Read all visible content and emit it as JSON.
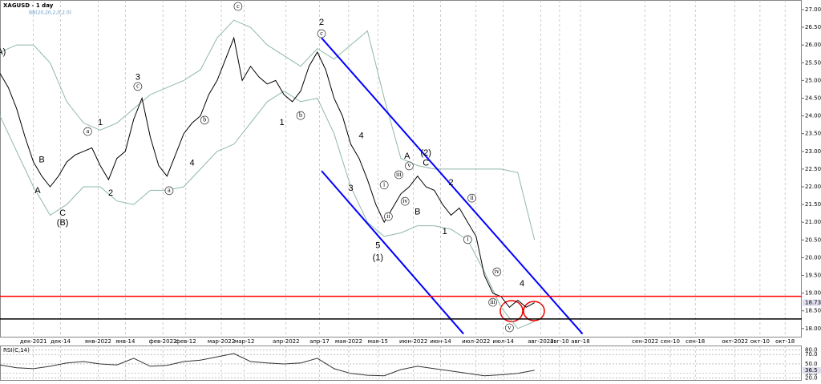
{
  "chart_data": {
    "type": "line",
    "title": "XAGUSD - 1 day",
    "indicator_label": "BB(20,20,2,0,2.0)",
    "x": [
      -16,
      -12,
      -8,
      -4,
      0,
      4,
      8,
      12,
      16,
      20,
      24,
      28,
      32,
      36,
      40,
      44,
      48,
      52,
      56,
      60,
      64,
      68,
      72,
      76,
      80,
      84,
      88,
      92,
      96,
      100,
      104,
      108,
      112,
      116,
      120,
      124,
      128,
      132,
      136,
      140,
      144,
      148,
      152,
      156,
      160,
      164,
      168,
      172,
      176,
      180,
      184,
      188,
      192,
      196,
      200,
      204,
      208,
      212,
      216,
      220,
      224,
      228,
      232,
      236,
      240
    ],
    "close": [
      25.2,
      24.8,
      24.2,
      23.4,
      22.7,
      22.3,
      22.0,
      22.3,
      22.7,
      22.9,
      23.0,
      23.1,
      22.6,
      22.2,
      22.8,
      23.0,
      23.9,
      24.5,
      23.4,
      22.6,
      22.3,
      22.9,
      23.5,
      23.8,
      24.0,
      24.6,
      25.0,
      25.6,
      26.2,
      25.0,
      25.4,
      25.1,
      24.9,
      25.0,
      24.6,
      24.4,
      24.7,
      25.4,
      25.8,
      25.3,
      24.5,
      24.0,
      23.2,
      22.8,
      22.2,
      21.5,
      21.0,
      21.4,
      21.8,
      22.0,
      22.3,
      22.0,
      21.9,
      21.5,
      21.2,
      21.4,
      21.0,
      20.6,
      19.5,
      19.0,
      18.9,
      18.6,
      18.8,
      18.6,
      18.73
    ],
    "close_color": "#000000",
    "band_x": [
      -16,
      -8,
      0,
      8,
      16,
      24,
      32,
      40,
      48,
      56,
      64,
      72,
      80,
      88,
      96,
      104,
      112,
      120,
      128,
      136,
      144,
      152,
      160,
      168,
      176,
      184,
      192,
      200,
      208,
      216,
      224,
      232,
      240
    ],
    "upper_band": [
      25.8,
      26.0,
      26.0,
      25.5,
      24.4,
      23.8,
      23.6,
      23.8,
      24.2,
      24.6,
      24.8,
      25.0,
      25.3,
      26.2,
      26.7,
      26.5,
      26.0,
      25.7,
      25.4,
      25.9,
      25.6,
      26.0,
      26.4,
      24.5,
      22.8,
      22.6,
      22.5,
      22.5,
      22.5,
      22.5,
      22.5,
      22.4,
      20.5
    ],
    "lower_band": [
      24.0,
      23.0,
      22.0,
      21.2,
      21.5,
      22.0,
      22.0,
      21.6,
      21.5,
      21.9,
      21.9,
      22.0,
      22.5,
      23.0,
      23.2,
      23.8,
      24.4,
      24.7,
      24.4,
      24.5,
      23.5,
      22.0,
      21.0,
      20.6,
      20.7,
      20.9,
      20.9,
      20.8,
      20.5,
      19.6,
      18.6,
      18.0,
      18.2
    ],
    "band_color": "#8fb8a8",
    "channel": [
      {
        "x": [
          138,
          263
        ],
        "y": [
          26.2,
          17.85
        ]
      },
      {
        "x": [
          138,
          206
        ],
        "y": [
          22.45,
          17.85
        ]
      }
    ],
    "channel_color": "#0000ff",
    "levels": [
      {
        "value": 18.91,
        "color": "#ff0000"
      },
      {
        "value": 18.27,
        "color": "#000000"
      }
    ],
    "last_price": 18.73,
    "xlim": [
      -16,
      368
    ],
    "ylim": [
      17.77,
      27.27
    ],
    "grid": true,
    "xticks": [
      {
        "value": 0,
        "label": "дек-2021"
      },
      {
        "value": 13,
        "label": "дек-14"
      },
      {
        "value": 31,
        "label": "янв-2022"
      },
      {
        "value": 44,
        "label": "янв-14"
      },
      {
        "value": 62,
        "label": "фев-2022"
      },
      {
        "value": 73,
        "label": "фев-12"
      },
      {
        "value": 90,
        "label": "мар-2022"
      },
      {
        "value": 101,
        "label": "мар-12"
      },
      {
        "value": 121,
        "label": "апр-2022"
      },
      {
        "value": 137,
        "label": "апр-17"
      },
      {
        "value": 151,
        "label": "мая-2022"
      },
      {
        "value": 165,
        "label": "мая-15"
      },
      {
        "value": 182,
        "label": "июн-2022"
      },
      {
        "value": 195,
        "label": "июн-14"
      },
      {
        "value": 212,
        "label": "июл-2022"
      },
      {
        "value": 225,
        "label": "июл-14"
      },
      {
        "value": 243,
        "label": "авг-2022"
      },
      {
        "value": 252,
        "label": "авг-10"
      },
      {
        "value": 262,
        "label": "авг-18"
      },
      {
        "value": 293,
        "label": "сен-2022"
      },
      {
        "value": 305,
        "label": "сен-10"
      },
      {
        "value": 317,
        "label": "сен-18"
      },
      {
        "value": 336,
        "label": "окт-2022"
      },
      {
        "value": 348,
        "label": "окт-10"
      },
      {
        "value": 360,
        "label": "окт-18"
      }
    ],
    "yticks": [
      {
        "value": 18,
        "label": "18.00"
      },
      {
        "value": 18.5,
        "label": "18.50"
      },
      {
        "value": 19,
        "label": "19.00"
      },
      {
        "value": 19.5,
        "label": "19.50"
      },
      {
        "value": 20,
        "label": "20.00"
      },
      {
        "value": 20.5,
        "label": "20.50"
      },
      {
        "value": 21,
        "label": "21.00"
      },
      {
        "value": 21.5,
        "label": "21.50"
      },
      {
        "value": 22,
        "label": "22.00"
      },
      {
        "value": 22.5,
        "label": "22.50"
      },
      {
        "value": 23,
        "label": "23.00"
      },
      {
        "value": 23.5,
        "label": "23.50"
      },
      {
        "value": 24,
        "label": "24.00"
      },
      {
        "value": 24.5,
        "label": "24.50"
      },
      {
        "value": 25,
        "label": "25.00"
      },
      {
        "value": 25.5,
        "label": "25.50"
      },
      {
        "value": 26,
        "label": "26.00"
      },
      {
        "value": 26.5,
        "label": "26.50"
      },
      {
        "value": 27,
        "label": "27.00"
      }
    ],
    "annotations": [
      {
        "text": "(A)",
        "x": -16,
        "y": 25.8,
        "circled": false
      },
      {
        "text": "B",
        "x": 4,
        "y": 22.75,
        "circled": false
      },
      {
        "text": "A",
        "x": 2,
        "y": 21.89,
        "circled": false
      },
      {
        "text": "C",
        "x": 14,
        "y": 21.25,
        "circled": false
      },
      {
        "text": "(B)",
        "x": 14,
        "y": 20.98,
        "circled": false
      },
      {
        "text": "1",
        "x": 32,
        "y": 23.81,
        "circled": false
      },
      {
        "text": "2",
        "x": 37,
        "y": 21.82,
        "circled": false
      },
      {
        "text": "3",
        "x": 50,
        "y": 25.08,
        "circled": false
      },
      {
        "text": "4",
        "x": 76,
        "y": 22.66,
        "circled": false
      },
      {
        "text": "1",
        "x": 119,
        "y": 23.81,
        "circled": false
      },
      {
        "text": "2",
        "x": 138,
        "y": 26.64,
        "circled": false
      },
      {
        "text": "3",
        "x": 152,
        "y": 21.95,
        "circled": false
      },
      {
        "text": "4",
        "x": 157,
        "y": 23.43,
        "circled": false
      },
      {
        "text": "5",
        "x": 165,
        "y": 20.33,
        "circled": false
      },
      {
        "text": "(1)",
        "x": 165,
        "y": 20.0,
        "circled": false
      },
      {
        "text": "A",
        "x": 179,
        "y": 22.86,
        "circled": false
      },
      {
        "text": "(2)",
        "x": 188,
        "y": 22.95,
        "circled": false
      },
      {
        "text": "C",
        "x": 188,
        "y": 22.66,
        "circled": false
      },
      {
        "text": "B",
        "x": 184,
        "y": 21.28,
        "circled": false
      },
      {
        "text": "2",
        "x": 200,
        "y": 22.11,
        "circled": false
      },
      {
        "text": "1",
        "x": 197,
        "y": 20.73,
        "circled": false
      },
      {
        "text": "4",
        "x": 234,
        "y": 19.26,
        "circled": false
      },
      {
        "text": "c",
        "x": 98,
        "y": 27.09,
        "circled": true
      },
      {
        "text": "c",
        "x": 138,
        "y": 26.32,
        "circled": true
      },
      {
        "text": "c",
        "x": 50,
        "y": 24.83,
        "circled": true
      },
      {
        "text": "b",
        "x": 128,
        "y": 24.01,
        "circled": true
      },
      {
        "text": "b",
        "x": 82,
        "y": 23.88,
        "circled": true
      },
      {
        "text": "a",
        "x": 65,
        "y": 21.89,
        "circled": true
      },
      {
        "text": "a",
        "x": 26,
        "y": 23.56,
        "circled": true
      },
      {
        "text": "i",
        "x": 168,
        "y": 22.05,
        "circled": true
      },
      {
        "text": "i",
        "x": 208,
        "y": 20.51,
        "circled": true
      },
      {
        "text": "ii",
        "x": 170,
        "y": 21.16,
        "circled": true
      },
      {
        "text": "iii",
        "x": 175,
        "y": 22.34,
        "circled": true
      },
      {
        "text": "iii",
        "x": 220,
        "y": 18.74,
        "circled": true
      },
      {
        "text": "iv",
        "x": 178,
        "y": 21.59,
        "circled": true
      },
      {
        "text": "iv",
        "x": 222,
        "y": 19.6,
        "circled": true
      },
      {
        "text": "v",
        "x": 180,
        "y": 22.59,
        "circled": true
      },
      {
        "text": "v",
        "x": 228,
        "y": 18.02,
        "circled": true
      },
      {
        "text": "ii",
        "x": 210,
        "y": 21.68,
        "circled": true
      }
    ],
    "rsi": {
      "title": "RSI(C,14)",
      "color": "#333333",
      "values": [
        48,
        42,
        40,
        45,
        52,
        55,
        50,
        48,
        62,
        45,
        47,
        55,
        58,
        65,
        72,
        55,
        52,
        50,
        52,
        62,
        40,
        30,
        26,
        25,
        38,
        45,
        40,
        35,
        30,
        25,
        27,
        30,
        36.5
      ],
      "last": 36.5,
      "ylim": [
        16,
        89
      ],
      "yticks": [
        {
          "value": 80,
          "label": "80.0"
        },
        {
          "value": 70,
          "label": "70.0"
        },
        {
          "value": 50,
          "label": "50.0"
        },
        {
          "value": 30,
          "label": "30.0"
        },
        {
          "value": 20,
          "label": "20.0"
        }
      ]
    }
  }
}
